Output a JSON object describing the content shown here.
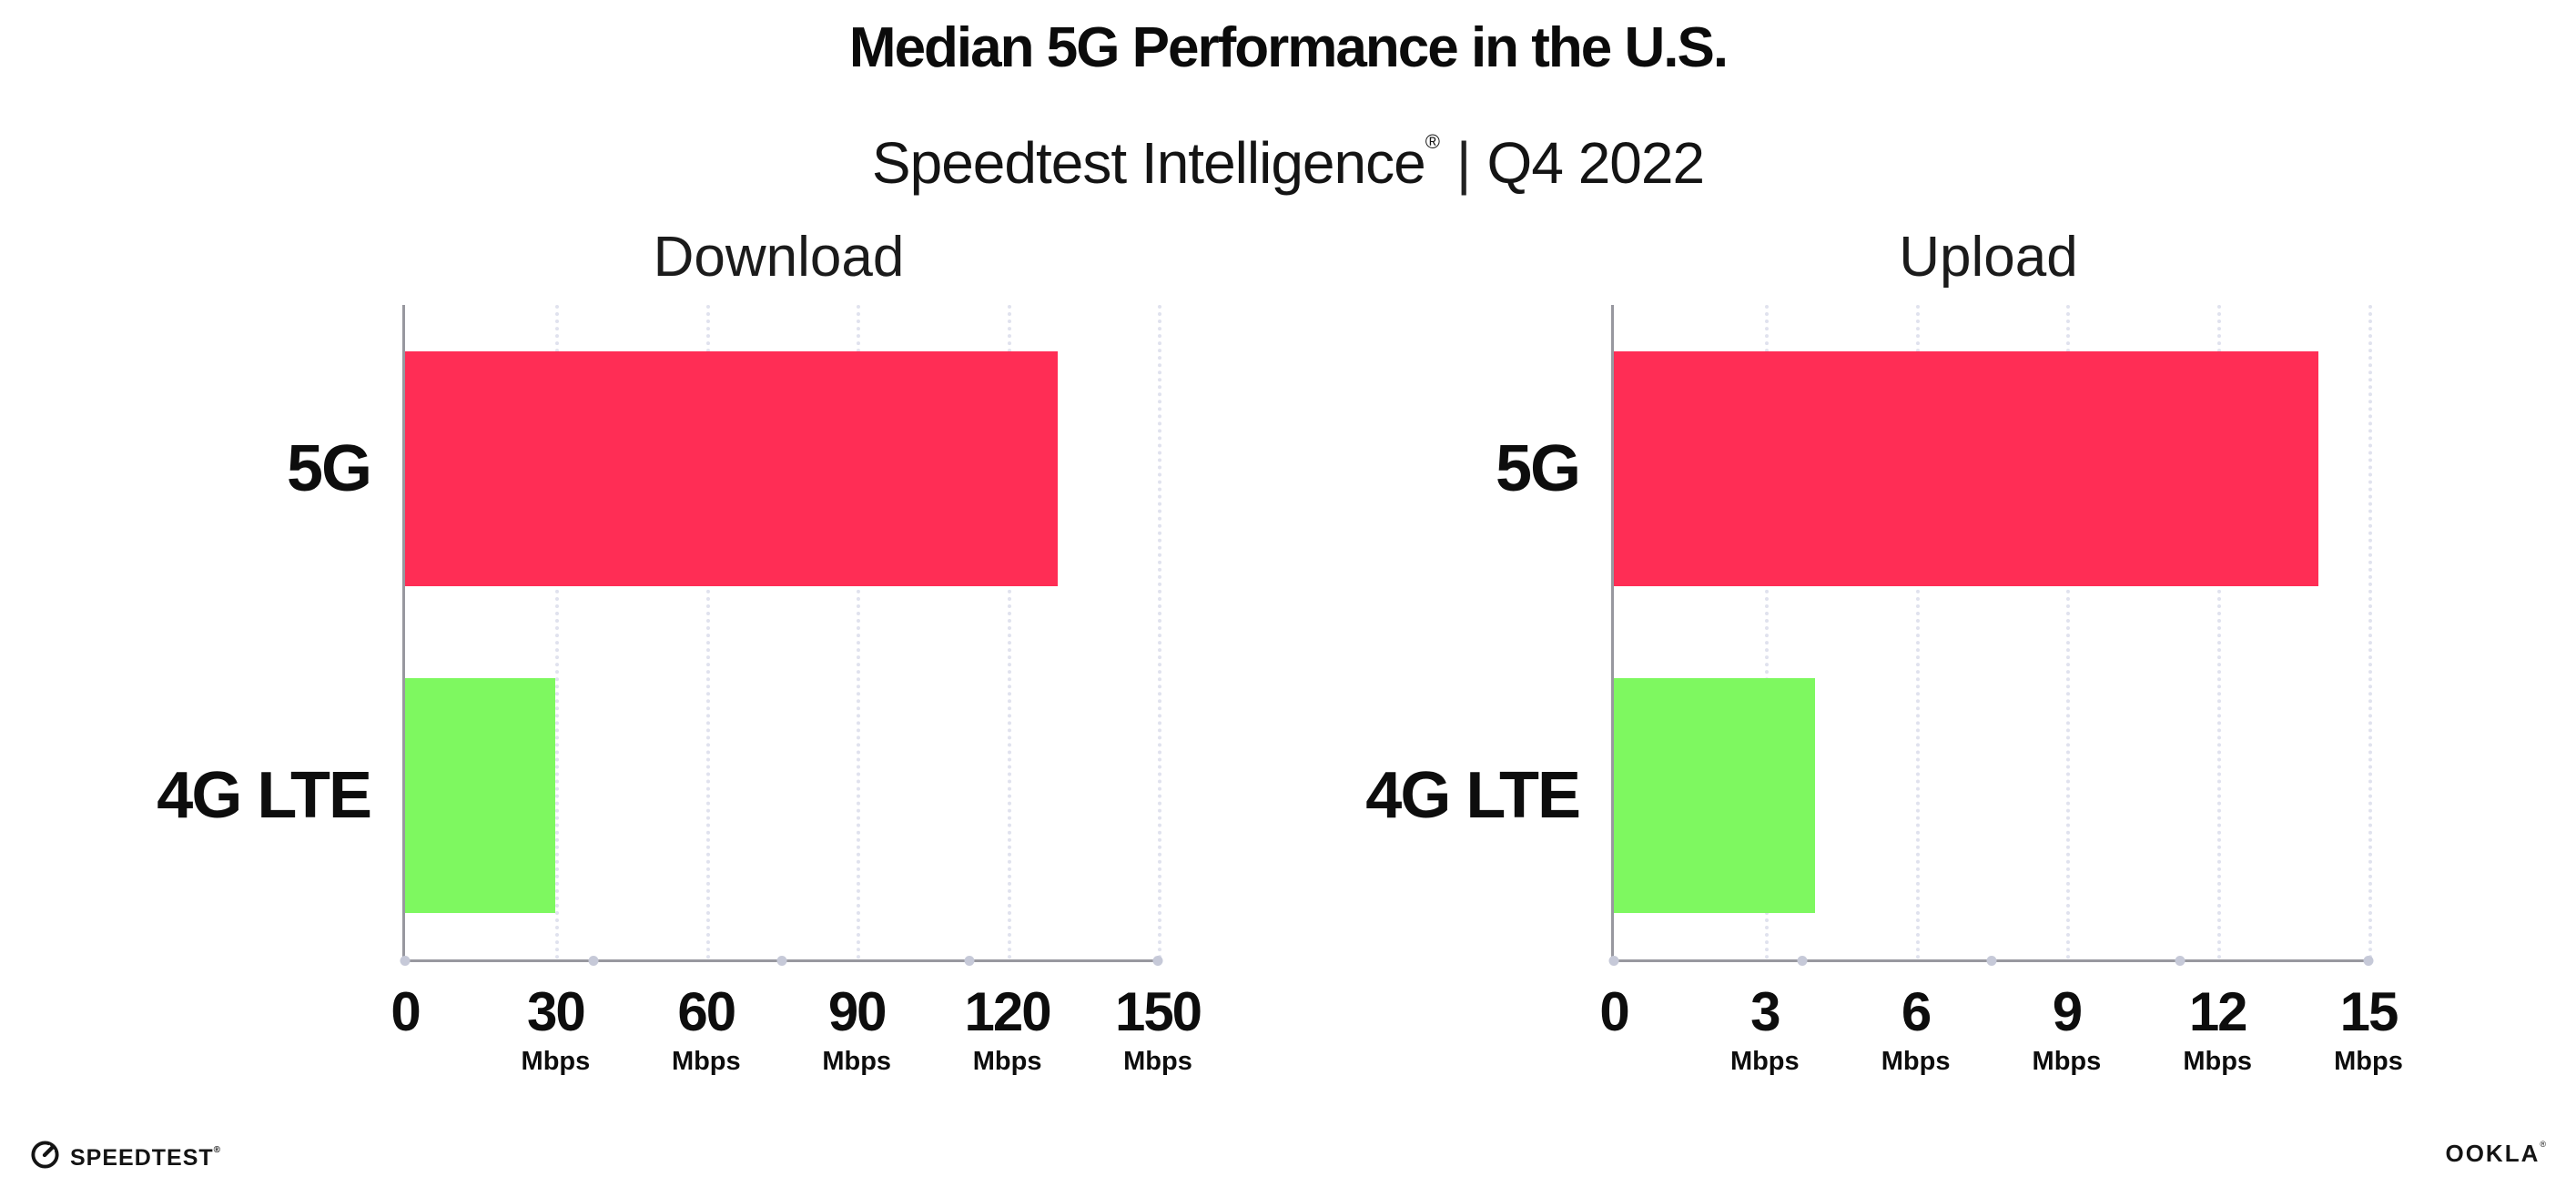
{
  "header": {
    "title": "Median 5G Performance in the U.S.",
    "subtitle_product": "Speedtest Intelligence",
    "subtitle_reg": "®",
    "subtitle_sep": "|",
    "subtitle_period": "Q4 2022"
  },
  "colors": {
    "bar_5g": "#ff2d55",
    "bar_4g_lte": "#7ef860",
    "axis_line": "#98989f",
    "grid_dots": "#e0e2ee",
    "axis_dots": "#c6c9d8",
    "text": "#0d0d0d"
  },
  "chart_data": [
    {
      "type": "bar",
      "orientation": "horizontal",
      "title": "Download",
      "categories": [
        "5G",
        "4G LTE"
      ],
      "values": [
        130,
        30
      ],
      "unit": "Mbps",
      "tick_unit": "Mbps",
      "xlim": [
        0,
        150
      ],
      "xticks": [
        0,
        30,
        60,
        90,
        120,
        150
      ],
      "grid": "dotted-vertical",
      "legend": "none",
      "bar_colors": [
        "#ff2d55",
        "#7ef860"
      ]
    },
    {
      "type": "bar",
      "orientation": "horizontal",
      "title": "Upload",
      "categories": [
        "5G",
        "4G LTE"
      ],
      "values": [
        14,
        4
      ],
      "unit": "Mbps",
      "tick_unit": "Mbps",
      "xlim": [
        0,
        15
      ],
      "xticks": [
        0,
        3,
        6,
        9,
        12,
        15
      ],
      "grid": "dotted-vertical",
      "legend": "none",
      "bar_colors": [
        "#ff2d55",
        "#7ef860"
      ]
    }
  ],
  "footer": {
    "speedtest_label": "SPEEDTEST",
    "speedtest_mark": "®",
    "ookla_label": "OOKLA",
    "ookla_mark": "®"
  }
}
